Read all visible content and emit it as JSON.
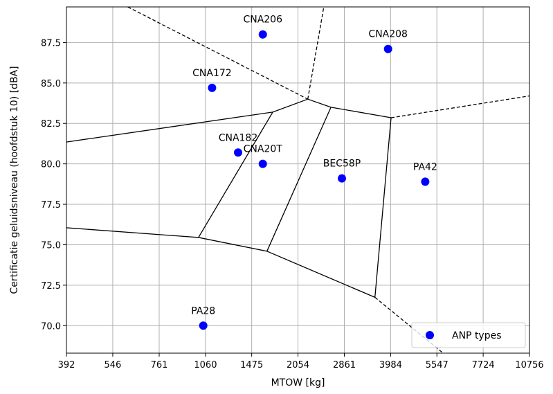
{
  "chart_data": {
    "type": "scatter",
    "xlabel": "MTOW [kg]",
    "ylabel": "Certificatie geluidsniveau (hoofdstuk 10) [dBA]",
    "x_scale": "log",
    "x_ticks": [
      392,
      546,
      761,
      1060,
      1475,
      2054,
      2861,
      3984,
      5547,
      7724,
      10756
    ],
    "x_tick_labels": [
      "392",
      "546",
      "761",
      "1060",
      "1475",
      "2054",
      "2861",
      "3984",
      "5547",
      "7724",
      "10756"
    ],
    "xlim": [
      392,
      10756
    ],
    "y_ticks": [
      70.0,
      72.5,
      75.0,
      77.5,
      80.0,
      82.5,
      85.0,
      87.5
    ],
    "y_tick_labels": [
      "70.0",
      "72.5",
      "75.0",
      "77.5",
      "80.0",
      "82.5",
      "85.0",
      "87.5"
    ],
    "ylim": [
      68.3,
      89.7
    ],
    "grid": true,
    "legend": {
      "position": "lower-right",
      "entries": [
        "ANP types"
      ]
    },
    "marker_color": "#0000ff",
    "series": [
      {
        "name": "ANP types",
        "points": [
          {
            "label": "CNA206",
            "x": 1597,
            "y": 88.0
          },
          {
            "label": "CNA208",
            "x": 3912,
            "y": 87.1
          },
          {
            "label": "CNA172",
            "x": 1111,
            "y": 84.7
          },
          {
            "label": "CNA182",
            "x": 1338,
            "y": 80.7
          },
          {
            "label": "CNA20T",
            "x": 1597,
            "y": 80.0
          },
          {
            "label": "BEC58P",
            "x": 2812,
            "y": 79.1
          },
          {
            "label": "PA42",
            "x": 5103,
            "y": 78.9
          },
          {
            "label": "PA28",
            "x": 1043,
            "y": 70.0
          }
        ]
      }
    ],
    "voronoi_edges": {
      "solid": [
        [
          [
            392,
            81.35
          ],
          [
            1715,
            83.2
          ]
        ],
        [
          [
            1715,
            83.2
          ],
          [
            2203,
            84.0
          ]
        ],
        [
          [
            2203,
            84.0
          ],
          [
            2600,
            83.5
          ]
        ],
        [
          [
            2600,
            83.5
          ],
          [
            3997,
            82.85
          ]
        ],
        [
          [
            392,
            76.05
          ],
          [
            1008,
            75.45
          ]
        ],
        [
          [
            1008,
            75.45
          ],
          [
            1715,
            83.2
          ]
        ],
        [
          [
            1008,
            75.45
          ],
          [
            1645,
            74.6
          ]
        ],
        [
          [
            1645,
            74.6
          ],
          [
            2600,
            83.5
          ]
        ],
        [
          [
            1645,
            74.6
          ],
          [
            3561,
            71.75
          ]
        ],
        [
          [
            3561,
            71.75
          ],
          [
            3997,
            82.85
          ]
        ]
      ],
      "dashed": [
        [
          [
            608,
            89.7
          ],
          [
            2203,
            84.0
          ]
        ],
        [
          [
            2203,
            84.0
          ],
          [
            2470,
            89.7
          ]
        ],
        [
          [
            3997,
            82.85
          ],
          [
            10756,
            84.2
          ]
        ],
        [
          [
            3561,
            71.75
          ],
          [
            5800,
            68.3
          ]
        ]
      ]
    }
  }
}
